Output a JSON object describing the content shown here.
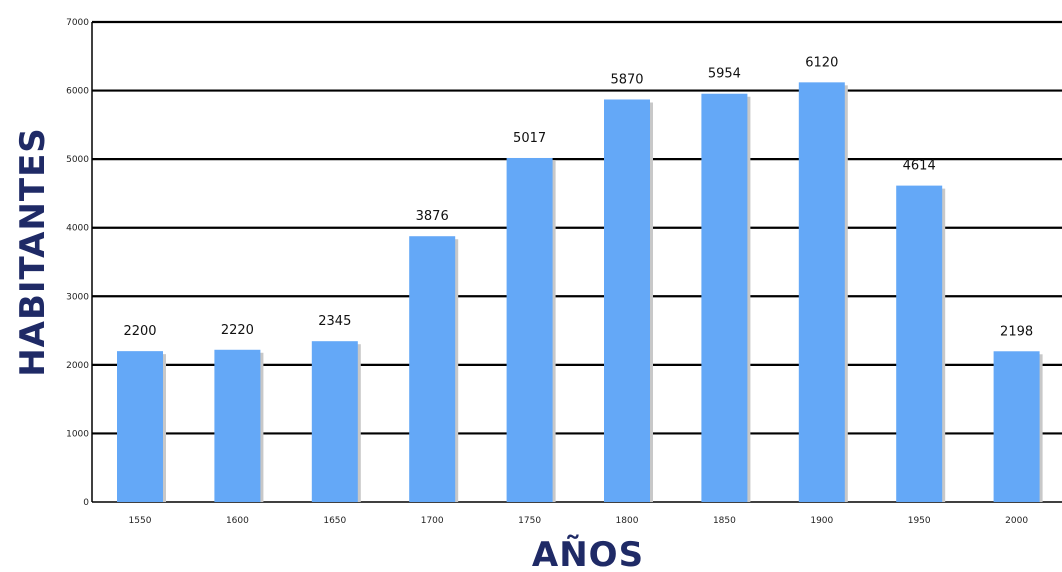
{
  "chart_data": {
    "type": "bar",
    "title": "",
    "xlabel": "AÑOS",
    "ylabel": "HABITANTES",
    "categories": [
      "1550",
      "1600",
      "1650",
      "1700",
      "1750",
      "1800",
      "1850",
      "1900",
      "1950",
      "2000"
    ],
    "values": [
      2200,
      2220,
      2345,
      3876,
      5017,
      5870,
      5954,
      6120,
      4614,
      2198
    ],
    "data_labels": [
      "2200",
      "2220",
      "2345",
      "3876",
      "5017",
      "5870",
      "5954",
      "6120",
      "4614",
      "2198"
    ],
    "ylim": [
      0,
      7000
    ],
    "yticks": [
      "0",
      "1000",
      "2000",
      "3000",
      "4000",
      "5000",
      "6000",
      "7000"
    ],
    "grid": true,
    "legend": "none",
    "colors": {
      "bar": "#64a8f7",
      "bar_shadow": "#c8c8c8",
      "axis_title": "#1f2a66",
      "grid": "#000000"
    }
  }
}
